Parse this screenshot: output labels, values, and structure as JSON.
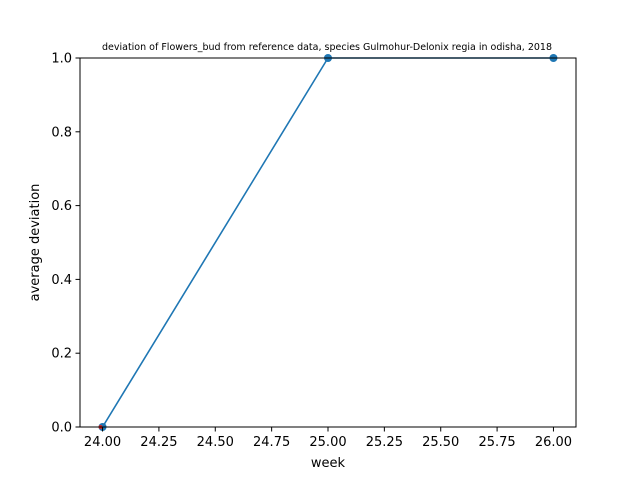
{
  "chart_data": {
    "type": "line",
    "title": "deviation of Flowers_bud from reference data, species Gulmohur-Delonix regia in odisha, 2018",
    "xlabel": "week",
    "ylabel": "average deviation",
    "xlim": [
      23.9,
      26.1
    ],
    "ylim": [
      0,
      1
    ],
    "x_ticks": [
      "24.00",
      "24.25",
      "24.50",
      "24.75",
      "25.00",
      "25.25",
      "25.50",
      "25.75",
      "26.00"
    ],
    "y_ticks": [
      "0.0",
      "0.2",
      "0.4",
      "0.6",
      "0.8",
      "1.0"
    ],
    "grid": false,
    "series": [
      {
        "x": [
          24,
          25,
          26
        ],
        "y": [
          0.0,
          1.0,
          1.0
        ],
        "color": "#1f77b4"
      }
    ],
    "marker_color": "#1f77b4",
    "start_marker_color": "#d62728"
  }
}
